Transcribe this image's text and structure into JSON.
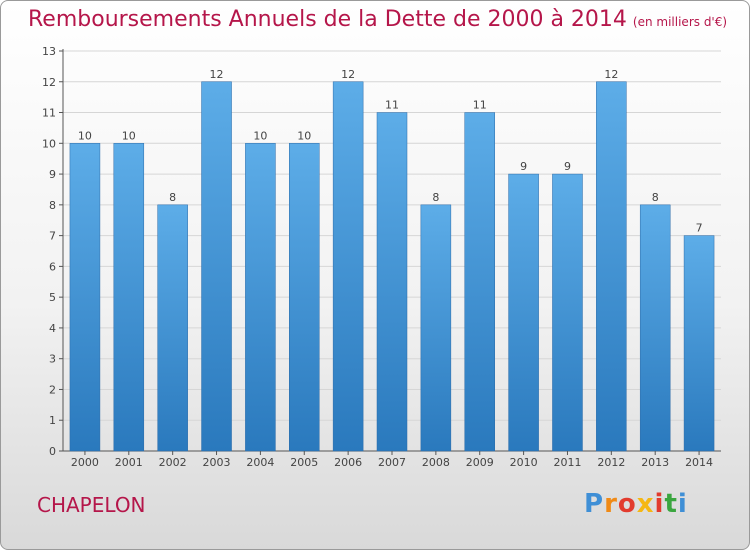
{
  "title": "Remboursements Annuels de la Dette de 2000 à 2014",
  "unit": "(en milliers d'€)",
  "town": "CHAPELON",
  "logo": {
    "text": "Proxiti",
    "letter_colors": [
      "#3f8fd6",
      "#f08a16",
      "#e23b2e",
      "#f5b713",
      "#e23b2e",
      "#3aa63f",
      "#3f8fd6"
    ]
  },
  "colors": {
    "title": "#b5164a",
    "bar_light": "#5dade8",
    "bar_dark": "#2a79bd",
    "grid": "#d6d6d6",
    "axis": "#555555"
  },
  "chart_data": {
    "type": "bar",
    "title": "Remboursements Annuels de la Dette de 2000 à 2014",
    "xlabel": "",
    "ylabel": "(en milliers d'€)",
    "categories": [
      "2000",
      "2001",
      "2002",
      "2003",
      "2004",
      "2005",
      "2006",
      "2007",
      "2008",
      "2009",
      "2010",
      "2011",
      "2012",
      "2013",
      "2014"
    ],
    "values": [
      10,
      10,
      8,
      12,
      10,
      10,
      12,
      11,
      8,
      11,
      9,
      9,
      12,
      8,
      7
    ],
    "yticks": [
      0,
      1,
      2,
      3,
      4,
      5,
      6,
      7,
      8,
      9,
      10,
      11,
      12,
      13
    ],
    "ylim": [
      0,
      13
    ],
    "grid": true
  }
}
